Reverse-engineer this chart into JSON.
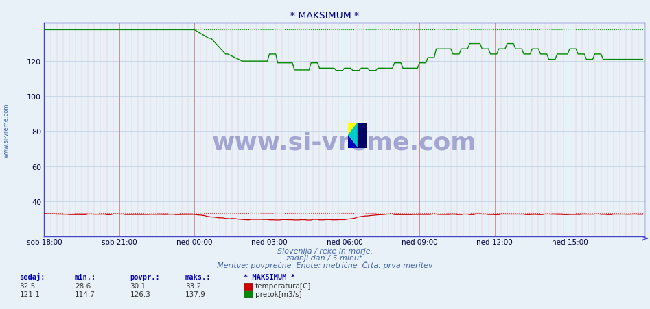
{
  "title": "* MAKSIMUM *",
  "title_color": "#000080",
  "bg_color": "#e8f0f8",
  "plot_bg_color": "#e8f0f8",
  "xlabel": "",
  "ylabel": "",
  "xlim": [
    0,
    288
  ],
  "ylim": [
    20,
    142
  ],
  "yticks": [
    40,
    60,
    80,
    100,
    120
  ],
  "xtick_labels": [
    "sob 18:00",
    "sob 21:00",
    "ned 00:00",
    "ned 03:00",
    "ned 06:00",
    "ned 09:00",
    "ned 12:00",
    "ned 15:00"
  ],
  "xtick_positions": [
    0,
    36,
    72,
    108,
    144,
    180,
    216,
    252
  ],
  "grid_h_color": "#c8d8e8",
  "grid_v_color": "#e8c0c0",
  "temp_color": "#cc0000",
  "flow_color": "#008800",
  "temp_dotted_color": "#dd4444",
  "flow_dotted_color": "#00aa00",
  "temp_max": 33.2,
  "flow_max": 137.9,
  "temp_min": 28.6,
  "flow_min": 114.7,
  "temp_avg": 30.1,
  "flow_avg": 126.3,
  "temp_current": 32.5,
  "flow_current": 121.1,
  "footer_line1": "Slovenija / reke in morje.",
  "footer_line2": "zadnji dan / 5 minut.",
  "footer_line3": "Meritve: povprečne  Enote: metrične  Črta: prva meritev",
  "footer_color": "#4466aa",
  "label_temp": "temperatura[C]",
  "label_flow": "pretok[m3/s]",
  "watermark": "www.si-vreme.com",
  "watermark_color": "#000080",
  "sidebar_text": "www.si-vreme.com",
  "sidebar_color": "#4466aa",
  "axis_color": "#4444cc",
  "tick_color": "#000044",
  "stats_header_color": "#0000aa",
  "stats_value_color": "#333333"
}
